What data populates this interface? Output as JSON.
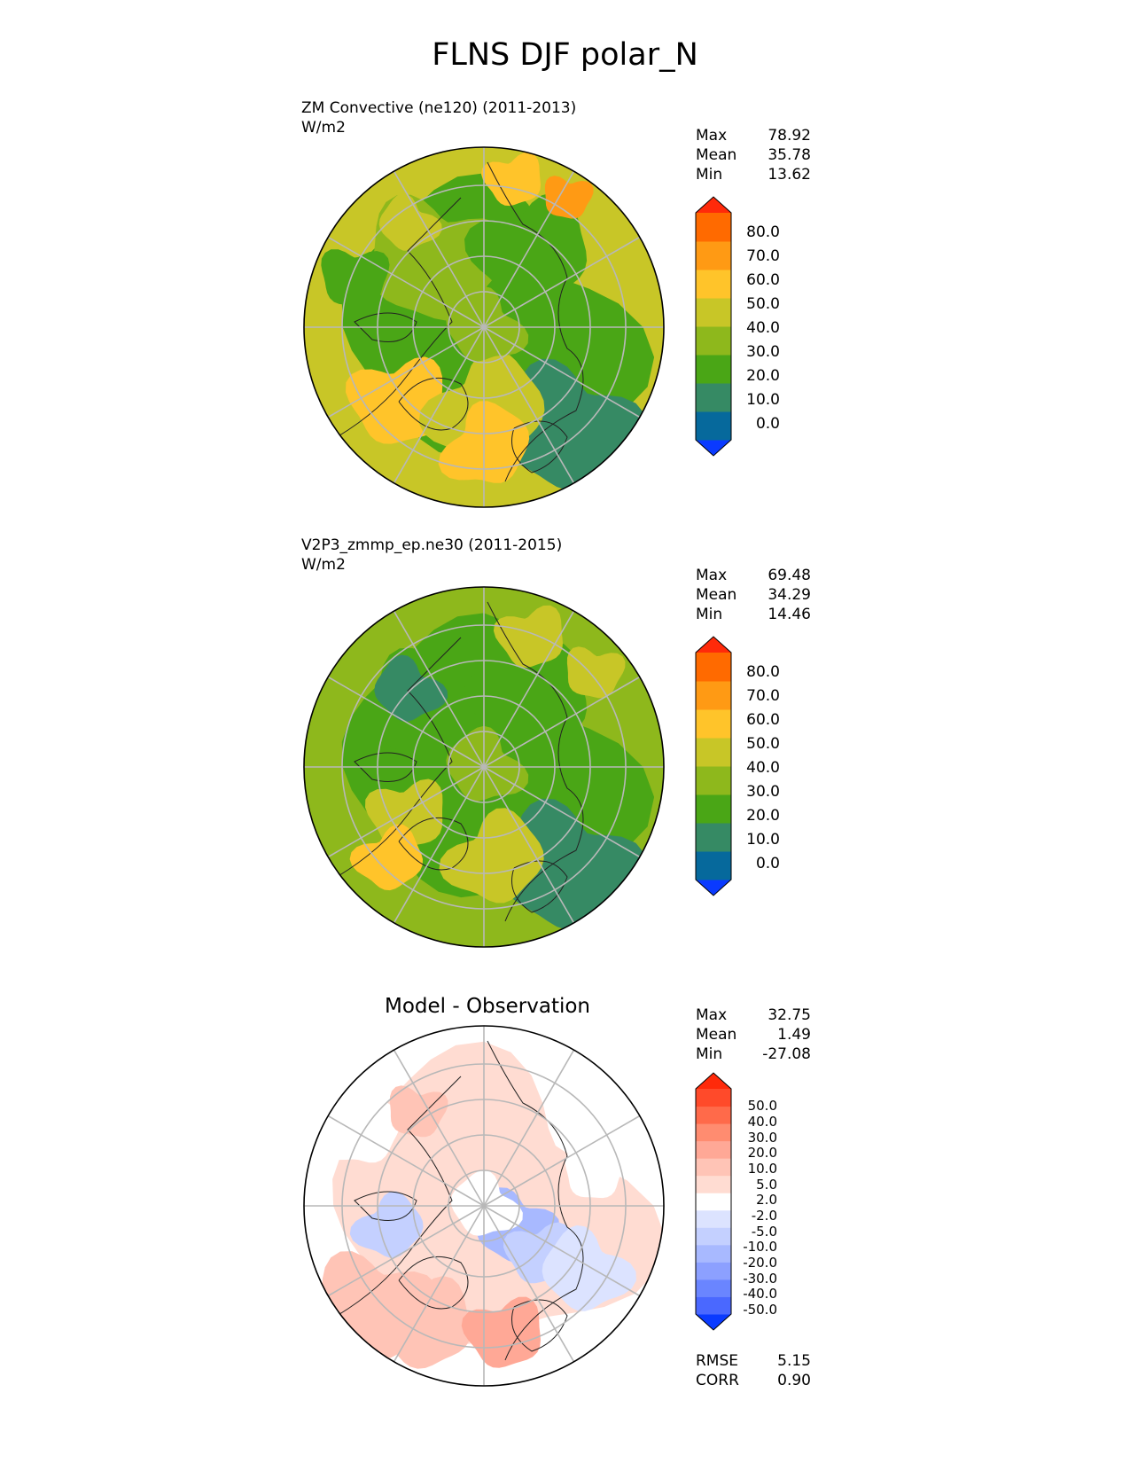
{
  "figure_title": "FLNS DJF polar_N",
  "chart_data": [
    {
      "type": "heatmap",
      "projection": "north-polar-stereographic",
      "title": "ZM Convective (ne120) (2011-2013)",
      "units": "W/m2",
      "stats": {
        "max": "78.92",
        "mean": "35.78",
        "min": "13.62"
      },
      "colorbar": {
        "levels": [
          "80.0",
          "70.0",
          "60.0",
          "50.0",
          "40.0",
          "30.0",
          "20.0",
          "10.0",
          "0.0"
        ],
        "colors": [
          "#ff2a0a",
          "#ff6a00",
          "#ff9a14",
          "#ffc42a",
          "#c8c627",
          "#8eb81c",
          "#4aa616",
          "#368a64",
          "#06699c",
          "#0a3aff"
        ]
      }
    },
    {
      "type": "heatmap",
      "projection": "north-polar-stereographic",
      "title": "V2P3_zmmp_ep.ne30 (2011-2015)",
      "units": "W/m2",
      "stats": {
        "max": "69.48",
        "mean": "34.29",
        "min": "14.46"
      },
      "colorbar": {
        "levels": [
          "80.0",
          "70.0",
          "60.0",
          "50.0",
          "40.0",
          "30.0",
          "20.0",
          "10.0",
          "0.0"
        ],
        "colors": [
          "#ff2a0a",
          "#ff6a00",
          "#ff9a14",
          "#ffc42a",
          "#c8c627",
          "#8eb81c",
          "#4aa616",
          "#368a64",
          "#06699c",
          "#0a3aff"
        ]
      }
    },
    {
      "type": "heatmap",
      "projection": "north-polar-stereographic",
      "title": "Model - Observation",
      "stats": {
        "max": "32.75",
        "mean": "1.49",
        "min": "-27.08"
      },
      "metrics": {
        "rmse": "5.15",
        "corr": "0.90"
      },
      "colorbar": {
        "levels": [
          "50.0",
          "40.0",
          "30.0",
          "20.0",
          "10.0",
          "5.0",
          "2.0",
          "-2.0",
          "-5.0",
          "-10.0",
          "-20.0",
          "-30.0",
          "-40.0",
          "-50.0"
        ],
        "colors": [
          "#ff2a0a",
          "#ff4a2a",
          "#ff6a4a",
          "#ff8c70",
          "#ffa896",
          "#ffc4b6",
          "#ffdcd2",
          "#ffffff",
          "#dce3ff",
          "#c4d0ff",
          "#a8b9ff",
          "#8ca0ff",
          "#6a85ff",
          "#4a68ff",
          "#0a3aff"
        ]
      }
    }
  ],
  "labels": {
    "max": "Max",
    "mean": "Mean",
    "min": "Min",
    "rmse": "RMSE",
    "corr": "CORR"
  }
}
